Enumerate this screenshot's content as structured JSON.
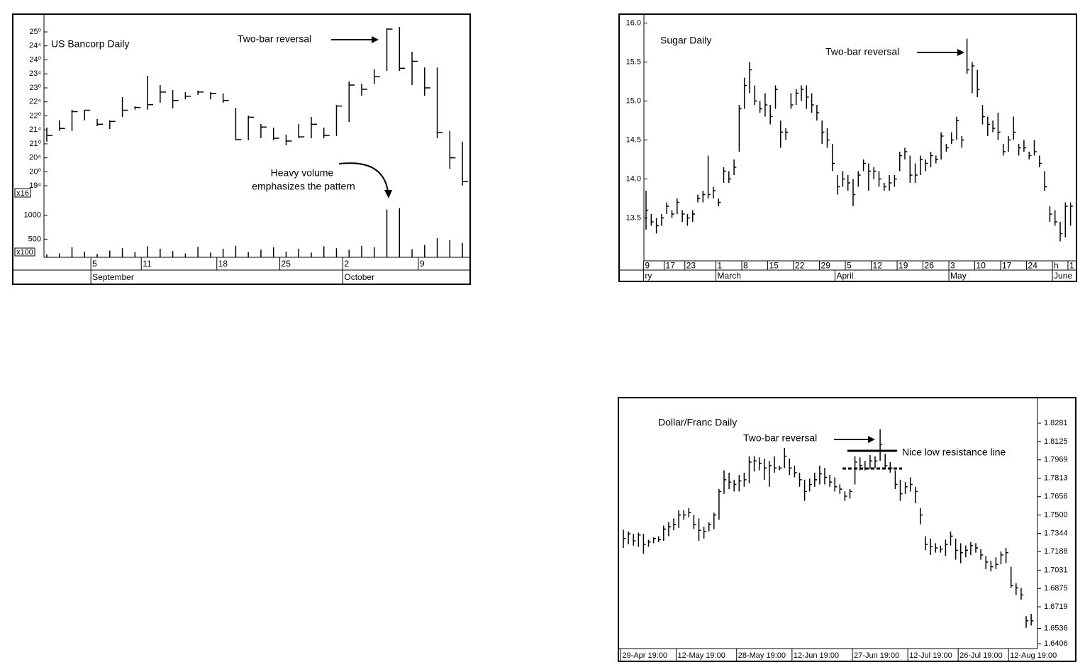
{
  "chart_data": [
    {
      "type": "ohlc",
      "title": "US Bancorp Daily",
      "color": "#000000",
      "y_axis_side": "left",
      "annotations": [
        "Two-bar reversal",
        "Heavy volume",
        "emphasizes the pattern",
        "x16",
        "x100"
      ],
      "categories": [
        null,
        null,
        null,
        null,
        "5",
        null,
        null,
        null,
        "11",
        null,
        null,
        null,
        null,
        null,
        "18",
        null,
        null,
        null,
        null,
        "25",
        null,
        null,
        null,
        null,
        "2",
        null,
        null,
        null,
        null,
        null,
        "9",
        null,
        null,
        null
      ],
      "months": [
        null,
        null,
        null,
        null,
        "September",
        null,
        null,
        null,
        null,
        null,
        null,
        null,
        null,
        null,
        null,
        null,
        null,
        null,
        null,
        null,
        null,
        null,
        null,
        null,
        "October",
        null,
        null,
        null,
        null,
        null,
        null,
        null,
        null,
        null
      ],
      "high": [
        21.58,
        21.84,
        22.22,
        22.22,
        21.89,
        21.84,
        22.67,
        22.34,
        23.43,
        23.1,
        22.92,
        22.85,
        22.9,
        22.85,
        22.8,
        22.29,
        22.01,
        21.71,
        21.58,
        21.33,
        21.71,
        21.96,
        21.58,
        22.39,
        23.23,
        23.15,
        23.66,
        25.13,
        25.18,
        24.29,
        23.73,
        23.73,
        21.46,
        21.08
      ],
      "low": [
        21.08,
        21.46,
        21.46,
        21.84,
        21.63,
        21.53,
        21.96,
        22.22,
        22.22,
        22.47,
        22.27,
        22.59,
        22.75,
        22.59,
        22.47,
        21.13,
        21.13,
        21.2,
        21.13,
        20.95,
        21.2,
        21.2,
        21.2,
        21.28,
        21.78,
        22.72,
        23.15,
        23.61,
        23.61,
        23.1,
        22.72,
        21.2,
        20.11,
        19.51
      ],
      "close": [
        21.3,
        21.55,
        22.15,
        22.2,
        21.7,
        21.8,
        22.2,
        22.3,
        22.4,
        22.85,
        22.55,
        22.7,
        22.85,
        22.8,
        22.55,
        21.15,
        21.95,
        21.6,
        21.2,
        21.1,
        21.25,
        21.7,
        21.3,
        22.35,
        23.1,
        22.95,
        23.4,
        25.1,
        23.7,
        23.95,
        23.0,
        21.4,
        20.5,
        19.65
      ],
      "volume": [
        180,
        200,
        330,
        240,
        190,
        260,
        310,
        230,
        350,
        300,
        250,
        200,
        340,
        220,
        300,
        360,
        230,
        280,
        330,
        240,
        300,
        220,
        350,
        310,
        280,
        360,
        330,
        1120,
        1150,
        290,
        380,
        520,
        480,
        420
      ],
      "ylim": [
        19.25,
        25.38
      ],
      "yticks": [
        {
          "value": 25,
          "label": "25⁰"
        },
        {
          "value": 24.5,
          "label": "24⁴"
        },
        {
          "value": 24,
          "label": "24⁰"
        },
        {
          "value": 23.5,
          "label": "23⁴"
        },
        {
          "value": 23,
          "label": "23⁰"
        },
        {
          "value": 22.5,
          "label": "22⁴"
        },
        {
          "value": 22,
          "label": "22⁰"
        },
        {
          "value": 21.5,
          "label": "21⁴"
        },
        {
          "value": 21,
          "label": "21⁰"
        },
        {
          "value": 20.5,
          "label": "20⁴"
        },
        {
          "value": 20,
          "label": "20⁰"
        },
        {
          "value": 19.5,
          "label": "19⁴"
        }
      ],
      "volume_ylim": [
        120,
        1500
      ],
      "volume_yticks": [
        500,
        1000
      ]
    },
    {
      "type": "ohlc",
      "title": "Sugar Daily",
      "color": "#000000",
      "y_axis_side": "left",
      "annotations": [
        "Two-bar reversal"
      ],
      "categories": [
        "9",
        null,
        null,
        null,
        "17",
        null,
        null,
        null,
        "23",
        null,
        null,
        null,
        null,
        null,
        "1",
        null,
        null,
        null,
        null,
        "8",
        null,
        null,
        null,
        null,
        "15",
        null,
        null,
        null,
        null,
        "22",
        null,
        null,
        null,
        null,
        "29",
        null,
        null,
        null,
        null,
        "5",
        null,
        null,
        null,
        null,
        "12",
        null,
        null,
        null,
        null,
        "19",
        null,
        null,
        null,
        null,
        "26",
        null,
        null,
        null,
        null,
        "3",
        null,
        null,
        null,
        null,
        "10",
        null,
        null,
        null,
        null,
        "17",
        null,
        null,
        null,
        null,
        "24",
        null,
        null,
        null,
        null,
        "h",
        null,
        null,
        "1"
      ],
      "months": [
        "ry",
        null,
        null,
        null,
        null,
        null,
        null,
        null,
        null,
        null,
        null,
        null,
        null,
        null,
        "March",
        null,
        null,
        null,
        null,
        null,
        null,
        null,
        null,
        null,
        null,
        null,
        null,
        null,
        null,
        null,
        null,
        null,
        null,
        null,
        null,
        null,
        null,
        "April",
        null,
        null,
        null,
        null,
        null,
        null,
        null,
        null,
        null,
        null,
        null,
        null,
        null,
        null,
        null,
        null,
        null,
        null,
        null,
        null,
        null,
        "May",
        null,
        null,
        null,
        null,
        null,
        null,
        null,
        null,
        null,
        null,
        null,
        null,
        null,
        null,
        null,
        null,
        null,
        null,
        null,
        "June",
        null,
        null,
        null
      ],
      "high": [
        13.85,
        13.55,
        13.5,
        13.55,
        13.7,
        13.6,
        13.75,
        13.6,
        13.55,
        13.6,
        13.8,
        13.85,
        14.3,
        13.9,
        13.75,
        14.15,
        14.1,
        14.25,
        14.95,
        15.3,
        15.5,
        15.2,
        15.0,
        15.1,
        14.95,
        15.2,
        14.75,
        14.65,
        15.1,
        15.15,
        15.2,
        15.2,
        15.1,
        14.95,
        14.75,
        14.65,
        14.45,
        14.05,
        14.1,
        14.05,
        14.0,
        14.1,
        14.25,
        14.2,
        14.15,
        14.1,
        13.95,
        14.05,
        14.05,
        14.35,
        14.4,
        14.3,
        14.2,
        14.3,
        14.25,
        14.35,
        14.3,
        14.6,
        14.45,
        14.6,
        14.8,
        14.55,
        15.8,
        15.5,
        15.4,
        14.95,
        14.8,
        14.75,
        14.85,
        14.45,
        14.55,
        14.8,
        14.45,
        14.5,
        14.35,
        14.5,
        14.3,
        14.1,
        13.65,
        13.6,
        13.45,
        13.7,
        13.7
      ],
      "low": [
        13.35,
        13.4,
        13.3,
        13.4,
        13.55,
        13.5,
        13.55,
        13.45,
        13.4,
        13.45,
        13.7,
        13.7,
        13.75,
        13.75,
        13.65,
        13.95,
        13.95,
        14.05,
        14.35,
        14.9,
        15.1,
        14.95,
        14.85,
        14.8,
        14.7,
        14.9,
        14.4,
        14.5,
        14.9,
        14.95,
        15.0,
        14.9,
        14.85,
        14.75,
        14.45,
        14.4,
        14.1,
        13.8,
        13.9,
        13.85,
        13.65,
        13.9,
        14.1,
        13.85,
        14.0,
        13.9,
        13.85,
        13.85,
        13.9,
        14.1,
        14.25,
        13.95,
        13.95,
        14.05,
        14.1,
        14.15,
        14.2,
        14.25,
        14.35,
        14.45,
        14.5,
        14.4,
        15.35,
        15.1,
        15.05,
        14.7,
        14.55,
        14.6,
        14.5,
        14.3,
        14.35,
        14.5,
        14.3,
        14.35,
        14.25,
        14.3,
        14.15,
        13.85,
        13.45,
        13.4,
        13.2,
        13.25,
        13.4
      ],
      "close": [
        13.6,
        13.45,
        13.4,
        13.5,
        13.65,
        13.55,
        13.7,
        13.55,
        13.5,
        13.55,
        13.75,
        13.8,
        13.8,
        13.85,
        13.7,
        14.1,
        14.0,
        14.15,
        14.9,
        15.2,
        15.4,
        15.0,
        14.9,
        14.95,
        14.8,
        15.15,
        14.6,
        14.6,
        14.95,
        15.1,
        15.15,
        15.05,
        14.95,
        14.85,
        14.6,
        14.5,
        14.2,
        13.9,
        14.0,
        13.95,
        13.8,
        14.05,
        14.2,
        14.1,
        14.1,
        14.0,
        13.9,
        13.95,
        14.0,
        14.3,
        14.35,
        14.05,
        14.05,
        14.25,
        14.2,
        14.3,
        14.25,
        14.55,
        14.4,
        14.5,
        14.75,
        14.5,
        15.4,
        15.45,
        15.15,
        14.8,
        14.7,
        14.65,
        14.6,
        14.35,
        14.5,
        14.6,
        14.4,
        14.4,
        14.3,
        14.35,
        14.2,
        13.9,
        13.55,
        13.45,
        13.3,
        13.65,
        13.65
      ],
      "ylim": [
        12.95,
        16.05
      ],
      "yticks": [
        13.5,
        {
          "value": 14,
          "label": "14.0"
        },
        14.5,
        {
          "value": 15,
          "label": "15.0"
        },
        15.5,
        {
          "value": 16,
          "label": "16.0"
        }
      ]
    },
    {
      "type": "ohlc",
      "title": "Dollar/Franc Daily",
      "color": "#000000",
      "y_axis_side": "right",
      "annotations": [
        "Two-bar reversal",
        "Nice low resistance line"
      ],
      "categories": [
        "29-Apr 19:00",
        null,
        null,
        null,
        null,
        null,
        null,
        null,
        null,
        null,
        null,
        "12-May 19:00",
        null,
        null,
        null,
        null,
        null,
        null,
        null,
        null,
        null,
        null,
        null,
        "28-May 19:00",
        null,
        null,
        null,
        null,
        null,
        null,
        null,
        null,
        null,
        null,
        "12-Jun 19:00",
        null,
        null,
        null,
        null,
        null,
        null,
        null,
        null,
        null,
        null,
        null,
        "27-Jun 19:00",
        null,
        null,
        null,
        null,
        null,
        null,
        null,
        null,
        null,
        null,
        "12-Jul 19:00",
        null,
        null,
        null,
        null,
        null,
        null,
        null,
        null,
        null,
        "26-Jul 19:00",
        null,
        null,
        null,
        null,
        null,
        null,
        null,
        null,
        null,
        "12-Aug 19:00",
        null,
        null,
        null,
        null
      ],
      "high": [
        1.7375,
        1.736,
        1.734,
        1.735,
        1.734,
        1.729,
        1.731,
        1.732,
        1.741,
        1.744,
        1.747,
        1.754,
        1.754,
        1.756,
        1.75,
        1.747,
        1.74,
        1.744,
        1.752,
        1.772,
        1.788,
        1.786,
        1.78,
        1.784,
        1.786,
        1.8,
        1.8,
        1.799,
        1.798,
        1.796,
        1.8,
        1.792,
        1.807,
        1.798,
        1.792,
        1.786,
        1.78,
        1.781,
        1.786,
        1.792,
        1.79,
        1.784,
        1.782,
        1.776,
        1.77,
        1.772,
        1.8,
        1.799,
        1.796,
        1.801,
        1.8,
        1.823,
        1.802,
        1.795,
        1.788,
        1.78,
        1.778,
        1.782,
        1.774,
        1.756,
        1.732,
        1.73,
        1.726,
        1.724,
        1.729,
        1.736,
        1.73,
        1.726,
        1.724,
        1.727,
        1.726,
        1.721,
        1.715,
        1.711,
        1.714,
        1.719,
        1.722,
        1.706,
        1.692,
        1.688,
        1.664,
        1.666
      ],
      "low": [
        1.722,
        1.725,
        1.724,
        1.723,
        1.717,
        1.723,
        1.726,
        1.727,
        1.728,
        1.732,
        1.737,
        1.739,
        1.746,
        1.748,
        1.738,
        1.728,
        1.73,
        1.736,
        1.738,
        1.746,
        1.768,
        1.772,
        1.77,
        1.77,
        1.774,
        1.777,
        1.787,
        1.788,
        1.78,
        1.774,
        1.786,
        1.788,
        1.79,
        1.784,
        1.782,
        1.774,
        1.762,
        1.77,
        1.774,
        1.776,
        1.776,
        1.774,
        1.77,
        1.768,
        1.762,
        1.764,
        1.776,
        1.788,
        1.788,
        1.789,
        1.79,
        1.796,
        1.79,
        1.786,
        1.772,
        1.762,
        1.768,
        1.77,
        1.76,
        1.742,
        1.72,
        1.716,
        1.718,
        1.718,
        1.715,
        1.724,
        1.712,
        1.709,
        1.714,
        1.716,
        1.718,
        1.712,
        1.704,
        1.702,
        1.704,
        1.708,
        1.709,
        1.688,
        1.682,
        1.678,
        1.654,
        1.656
      ],
      "close": [
        1.73,
        1.734,
        1.728,
        1.733,
        1.725,
        1.727,
        1.73,
        1.729,
        1.738,
        1.74,
        1.742,
        1.75,
        1.75,
        1.752,
        1.742,
        1.737,
        1.736,
        1.742,
        1.75,
        1.77,
        1.78,
        1.778,
        1.776,
        1.779,
        1.78,
        1.795,
        1.796,
        1.794,
        1.79,
        1.792,
        1.79,
        1.79,
        1.8,
        1.79,
        1.786,
        1.78,
        1.77,
        1.776,
        1.78,
        1.785,
        1.782,
        1.778,
        1.774,
        1.772,
        1.766,
        1.77,
        1.795,
        1.792,
        1.79,
        1.796,
        1.796,
        1.81,
        1.792,
        1.79,
        1.776,
        1.768,
        1.774,
        1.776,
        1.77,
        1.75,
        1.725,
        1.723,
        1.722,
        1.721,
        1.725,
        1.732,
        1.72,
        1.718,
        1.72,
        1.724,
        1.722,
        1.716,
        1.71,
        1.706,
        1.708,
        1.716,
        1.718,
        1.69,
        1.688,
        1.682,
        1.66,
        1.66
      ],
      "ylim": [
        1.6364,
        1.8468
      ],
      "yticks": [
        1.8281,
        1.8125,
        1.7969,
        1.7813,
        1.7656,
        {
          "value": 1.75,
          "label": "1.7500"
        },
        1.7344,
        1.7188,
        1.7031,
        1.6875,
        1.6719,
        1.6536,
        1.6406
      ]
    }
  ]
}
